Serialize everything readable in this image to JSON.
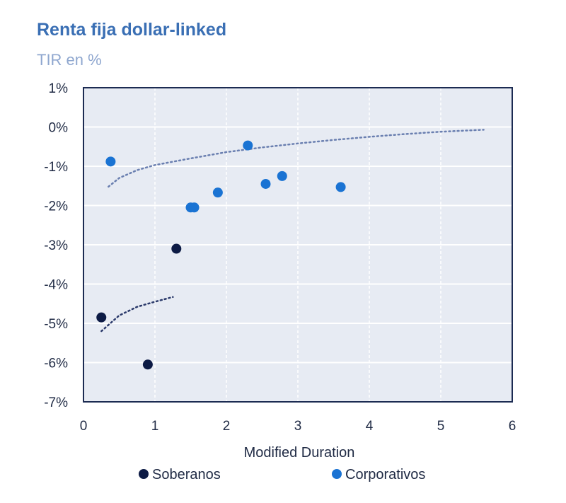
{
  "chart_data": {
    "type": "scatter",
    "title": "Renta fija dollar-linked",
    "subtitle": "TIR en %",
    "xlabel": "Modified Duration",
    "ylabel": "",
    "xlim": [
      0,
      6
    ],
    "ylim": [
      -7,
      1
    ],
    "x_ticks": [
      "0",
      "1",
      "2",
      "3",
      "4",
      "5",
      "6"
    ],
    "y_ticks": [
      "1%",
      "0%",
      "-1%",
      "-2%",
      "-3%",
      "-4%",
      "-5%",
      "-6%",
      "-7%"
    ],
    "grid": true,
    "legend_position": "bottom",
    "colors": {
      "soberanos": "#0d1b45",
      "corporativos": "#1a73d3",
      "plot_bg": "#e7ebf3",
      "frame": "#1c2b52"
    },
    "series": [
      {
        "name": "Soberanos",
        "points": [
          {
            "x": 0.25,
            "y": -4.85
          },
          {
            "x": 0.9,
            "y": -6.05
          },
          {
            "x": 1.3,
            "y": -3.1
          }
        ],
        "trend": [
          {
            "x": 0.25,
            "y": -5.2
          },
          {
            "x": 0.5,
            "y": -4.8
          },
          {
            "x": 0.75,
            "y": -4.58
          },
          {
            "x": 1.0,
            "y": -4.45
          },
          {
            "x": 1.25,
            "y": -4.33
          }
        ]
      },
      {
        "name": "Corporativos",
        "points": [
          {
            "x": 0.38,
            "y": -0.88
          },
          {
            "x": 1.5,
            "y": -2.05
          },
          {
            "x": 1.55,
            "y": -2.05
          },
          {
            "x": 1.88,
            "y": -1.67
          },
          {
            "x": 2.3,
            "y": -0.47
          },
          {
            "x": 2.55,
            "y": -1.45
          },
          {
            "x": 2.78,
            "y": -1.25
          },
          {
            "x": 3.6,
            "y": -1.53
          }
        ],
        "trend": [
          {
            "x": 0.35,
            "y": -1.52
          },
          {
            "x": 0.5,
            "y": -1.3
          },
          {
            "x": 0.75,
            "y": -1.1
          },
          {
            "x": 1.0,
            "y": -0.97
          },
          {
            "x": 1.5,
            "y": -0.8
          },
          {
            "x": 2.0,
            "y": -0.64
          },
          {
            "x": 2.5,
            "y": -0.52
          },
          {
            "x": 3.0,
            "y": -0.42
          },
          {
            "x": 3.5,
            "y": -0.33
          },
          {
            "x": 4.0,
            "y": -0.25
          },
          {
            "x": 4.5,
            "y": -0.18
          },
          {
            "x": 5.0,
            "y": -0.12
          },
          {
            "x": 5.6,
            "y": -0.07
          }
        ]
      }
    ]
  }
}
